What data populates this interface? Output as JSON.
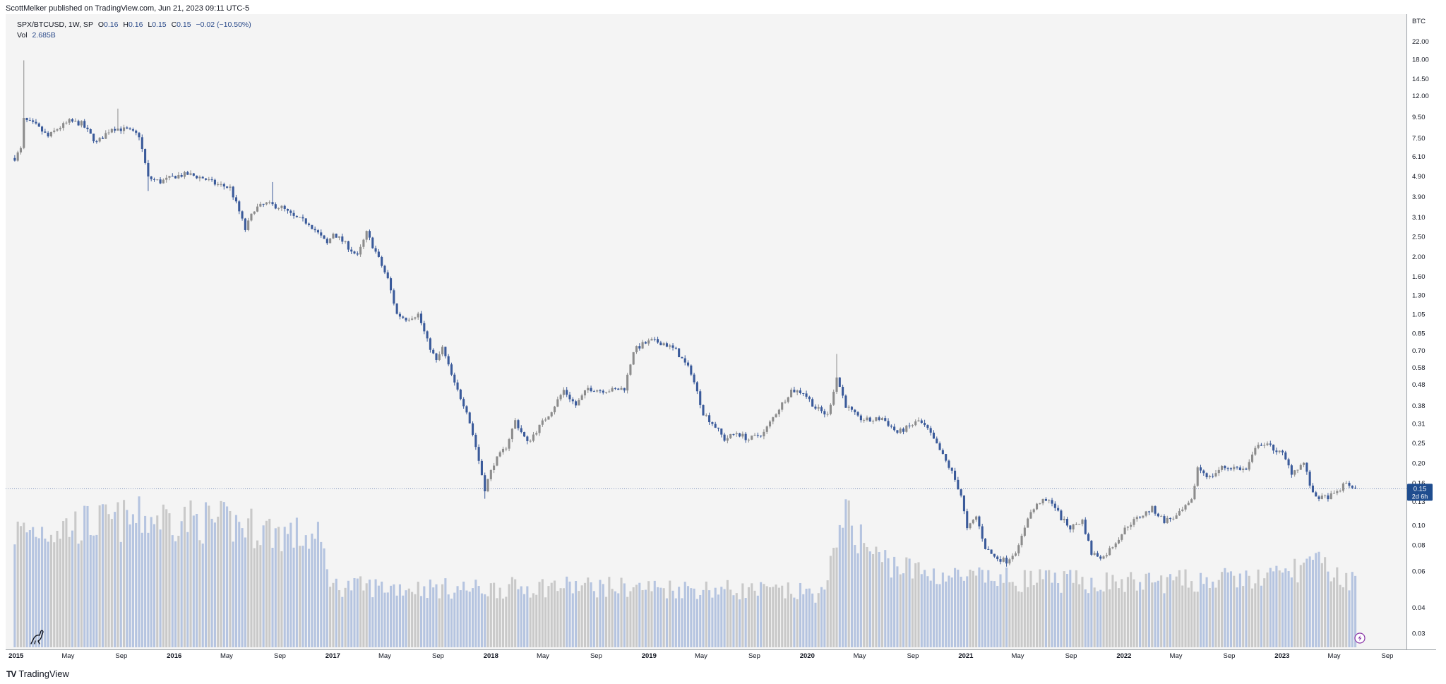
{
  "header": {
    "published_by": "ScottMelker published on TradingView.com, Jun 21, 2023 09:11 UTC-5"
  },
  "legend": {
    "symbol": "SPX/BTCUSD, 1W, SP",
    "open_label": "O",
    "open": "0.16",
    "high_label": "H",
    "high": "0.16",
    "low_label": "L",
    "low": "0.15",
    "close_label": "C",
    "close": "0.15",
    "change": "−0.02 (−10.50%)",
    "vol_label": "Vol",
    "vol_value": "2.685B"
  },
  "price_tag": {
    "value": "0.15",
    "countdown": "2d 6h"
  },
  "footer": {
    "brand": "TradingView"
  },
  "colors": {
    "background": "#f4f4f4",
    "up_candle": "#8c8c8c",
    "down_candle": "#3a5a9a",
    "up_volume": "#c9c9c9",
    "down_volume": "#b5c4e0",
    "tag": "#1f4d8f",
    "lightning_icon": "#8a35a8"
  },
  "chart_data": {
    "type": "candlestick",
    "title": "SPX/BTCUSD, 1W, SP",
    "yunit": "BTC",
    "scale": "log",
    "ylim": [
      0.026,
      28
    ],
    "y_ticks": [
      22.0,
      18.0,
      14.5,
      12.0,
      9.5,
      7.5,
      6.1,
      4.9,
      3.9,
      3.1,
      2.5,
      2.0,
      1.6,
      1.3,
      1.05,
      0.85,
      0.7,
      0.58,
      0.48,
      0.38,
      0.31,
      0.25,
      0.2,
      0.16,
      0.13,
      0.1,
      0.08,
      0.06,
      0.04,
      0.03
    ],
    "y_tick_labels": [
      "22.00",
      "18.00",
      "14.50",
      "12.00",
      "9.50",
      "7.50",
      "6.10",
      "4.90",
      "3.90",
      "3.10",
      "2.50",
      "2.00",
      "1.60",
      "1.30",
      "1.05",
      "0.85",
      "0.70",
      "0.58",
      "0.48",
      "0.38",
      "0.31",
      "0.25",
      "0.20",
      "0.16",
      "0.13",
      "0.10",
      "0.08",
      "0.06",
      "0.04",
      "0.03"
    ],
    "x_axis": {
      "start": "2014-12-08",
      "end": "2023-10-15",
      "ticks": [
        {
          "date": "2015-01-01",
          "label": "2015",
          "bold": true
        },
        {
          "date": "2015-05-01",
          "label": "May",
          "bold": false
        },
        {
          "date": "2015-09-01",
          "label": "Sep",
          "bold": false
        },
        {
          "date": "2016-01-01",
          "label": "2016",
          "bold": true
        },
        {
          "date": "2016-05-01",
          "label": "May",
          "bold": false
        },
        {
          "date": "2016-09-01",
          "label": "Sep",
          "bold": false
        },
        {
          "date": "2017-01-01",
          "label": "2017",
          "bold": true
        },
        {
          "date": "2017-05-01",
          "label": "May",
          "bold": false
        },
        {
          "date": "2017-09-01",
          "label": "Sep",
          "bold": false
        },
        {
          "date": "2018-01-01",
          "label": "2018",
          "bold": true
        },
        {
          "date": "2018-05-01",
          "label": "May",
          "bold": false
        },
        {
          "date": "2018-09-01",
          "label": "Sep",
          "bold": false
        },
        {
          "date": "2019-01-01",
          "label": "2019",
          "bold": true
        },
        {
          "date": "2019-05-01",
          "label": "May",
          "bold": false
        },
        {
          "date": "2019-09-01",
          "label": "Sep",
          "bold": false
        },
        {
          "date": "2020-01-01",
          "label": "2020",
          "bold": true
        },
        {
          "date": "2020-05-01",
          "label": "May",
          "bold": false
        },
        {
          "date": "2020-09-01",
          "label": "Sep",
          "bold": false
        },
        {
          "date": "2021-01-01",
          "label": "2021",
          "bold": true
        },
        {
          "date": "2021-05-01",
          "label": "May",
          "bold": false
        },
        {
          "date": "2021-09-01",
          "label": "Sep",
          "bold": false
        },
        {
          "date": "2022-01-01",
          "label": "2022",
          "bold": true
        },
        {
          "date": "2022-05-01",
          "label": "May",
          "bold": false
        },
        {
          "date": "2022-09-01",
          "label": "Sep",
          "bold": false
        },
        {
          "date": "2023-01-01",
          "label": "2023",
          "bold": true
        },
        {
          "date": "2023-05-01",
          "label": "May",
          "bold": false
        },
        {
          "date": "2023-09-01",
          "label": "Sep",
          "bold": false
        }
      ]
    },
    "last_price": 0.15,
    "close_path": [
      {
        "date": "2014-12-29",
        "close": 6.0
      },
      {
        "date": "2015-01-12",
        "close": 6.6
      },
      {
        "date": "2015-01-19",
        "close": 9.2
      },
      {
        "date": "2015-02-16",
        "close": 8.6
      },
      {
        "date": "2015-03-16",
        "close": 7.6
      },
      {
        "date": "2015-04-06",
        "close": 8.3
      },
      {
        "date": "2015-05-04",
        "close": 9.0
      },
      {
        "date": "2015-06-01",
        "close": 8.8
      },
      {
        "date": "2015-07-06",
        "close": 7.1
      },
      {
        "date": "2015-08-10",
        "close": 8.4
      },
      {
        "date": "2015-09-14",
        "close": 8.2
      },
      {
        "date": "2015-10-12",
        "close": 7.7
      },
      {
        "date": "2015-11-02",
        "close": 4.8
      },
      {
        "date": "2015-11-30",
        "close": 4.6
      },
      {
        "date": "2016-01-04",
        "close": 4.9
      },
      {
        "date": "2016-02-01",
        "close": 5.0
      },
      {
        "date": "2016-03-07",
        "close": 4.8
      },
      {
        "date": "2016-04-04",
        "close": 4.5
      },
      {
        "date": "2016-05-09",
        "close": 4.3
      },
      {
        "date": "2016-05-30",
        "close": 3.3
      },
      {
        "date": "2016-06-13",
        "close": 2.7
      },
      {
        "date": "2016-07-04",
        "close": 3.4
      },
      {
        "date": "2016-08-01",
        "close": 3.6
      },
      {
        "date": "2016-09-05",
        "close": 3.45
      },
      {
        "date": "2016-10-03",
        "close": 3.1
      },
      {
        "date": "2016-11-07",
        "close": 2.9
      },
      {
        "date": "2016-12-19",
        "close": 2.3
      },
      {
        "date": "2017-01-02",
        "close": 2.6
      },
      {
        "date": "2017-01-30",
        "close": 2.3
      },
      {
        "date": "2017-02-27",
        "close": 2.0
      },
      {
        "date": "2017-03-20",
        "close": 2.6
      },
      {
        "date": "2017-04-10",
        "close": 2.1
      },
      {
        "date": "2017-05-08",
        "close": 1.55
      },
      {
        "date": "2017-05-29",
        "close": 1.05
      },
      {
        "date": "2017-06-19",
        "close": 1.0
      },
      {
        "date": "2017-07-17",
        "close": 1.05
      },
      {
        "date": "2017-08-07",
        "close": 0.78
      },
      {
        "date": "2017-08-28",
        "close": 0.62
      },
      {
        "date": "2017-09-11",
        "close": 0.72
      },
      {
        "date": "2017-10-09",
        "close": 0.48
      },
      {
        "date": "2017-11-06",
        "close": 0.36
      },
      {
        "date": "2017-11-27",
        "close": 0.24
      },
      {
        "date": "2017-12-18",
        "close": 0.15
      },
      {
        "date": "2018-01-08",
        "close": 0.2
      },
      {
        "date": "2018-02-05",
        "close": 0.24
      },
      {
        "date": "2018-02-26",
        "close": 0.32
      },
      {
        "date": "2018-03-26",
        "close": 0.25
      },
      {
        "date": "2018-04-23",
        "close": 0.3
      },
      {
        "date": "2018-05-21",
        "close": 0.36
      },
      {
        "date": "2018-06-18",
        "close": 0.45
      },
      {
        "date": "2018-07-16",
        "close": 0.38
      },
      {
        "date": "2018-08-13",
        "close": 0.46
      },
      {
        "date": "2018-09-10",
        "close": 0.45
      },
      {
        "date": "2018-10-08",
        "close": 0.45
      },
      {
        "date": "2018-11-05",
        "close": 0.46
      },
      {
        "date": "2018-11-26",
        "close": 0.7
      },
      {
        "date": "2018-12-17",
        "close": 0.75
      },
      {
        "date": "2019-01-07",
        "close": 0.78
      },
      {
        "date": "2019-02-04",
        "close": 0.76
      },
      {
        "date": "2019-03-04",
        "close": 0.7
      },
      {
        "date": "2019-04-08",
        "close": 0.55
      },
      {
        "date": "2019-05-06",
        "close": 0.35
      },
      {
        "date": "2019-06-03",
        "close": 0.3
      },
      {
        "date": "2019-06-24",
        "close": 0.26
      },
      {
        "date": "2019-07-22",
        "close": 0.28
      },
      {
        "date": "2019-08-19",
        "close": 0.26
      },
      {
        "date": "2019-09-23",
        "close": 0.28
      },
      {
        "date": "2019-10-21",
        "close": 0.35
      },
      {
        "date": "2019-11-25",
        "close": 0.45
      },
      {
        "date": "2019-12-23",
        "close": 0.44
      },
      {
        "date": "2020-01-20",
        "close": 0.37
      },
      {
        "date": "2020-02-17",
        "close": 0.34
      },
      {
        "date": "2020-03-09",
        "close": 0.52
      },
      {
        "date": "2020-03-30",
        "close": 0.38
      },
      {
        "date": "2020-04-27",
        "close": 0.33
      },
      {
        "date": "2020-05-25",
        "close": 0.32
      },
      {
        "date": "2020-06-22",
        "close": 0.33
      },
      {
        "date": "2020-07-27",
        "close": 0.28
      },
      {
        "date": "2020-08-24",
        "close": 0.3
      },
      {
        "date": "2020-09-14",
        "close": 0.32
      },
      {
        "date": "2020-10-05",
        "close": 0.29
      },
      {
        "date": "2020-11-02",
        "close": 0.23
      },
      {
        "date": "2020-11-30",
        "close": 0.18
      },
      {
        "date": "2020-12-21",
        "close": 0.14
      },
      {
        "date": "2021-01-04",
        "close": 0.095
      },
      {
        "date": "2021-01-25",
        "close": 0.11
      },
      {
        "date": "2021-02-15",
        "close": 0.078
      },
      {
        "date": "2021-03-08",
        "close": 0.07
      },
      {
        "date": "2021-04-05",
        "close": 0.067
      },
      {
        "date": "2021-05-03",
        "close": 0.078
      },
      {
        "date": "2021-05-24",
        "close": 0.11
      },
      {
        "date": "2021-06-21",
        "close": 0.13
      },
      {
        "date": "2021-07-19",
        "close": 0.13
      },
      {
        "date": "2021-08-09",
        "close": 0.108
      },
      {
        "date": "2021-08-30",
        "close": 0.097
      },
      {
        "date": "2021-09-27",
        "close": 0.105
      },
      {
        "date": "2021-10-18",
        "close": 0.073
      },
      {
        "date": "2021-11-15",
        "close": 0.07
      },
      {
        "date": "2021-12-13",
        "close": 0.083
      },
      {
        "date": "2022-01-10",
        "close": 0.1
      },
      {
        "date": "2022-02-07",
        "close": 0.11
      },
      {
        "date": "2022-03-07",
        "close": 0.12
      },
      {
        "date": "2022-04-04",
        "close": 0.105
      },
      {
        "date": "2022-05-02",
        "close": 0.11
      },
      {
        "date": "2022-06-06",
        "close": 0.13
      },
      {
        "date": "2022-06-20",
        "close": 0.19
      },
      {
        "date": "2022-07-18",
        "close": 0.17
      },
      {
        "date": "2022-08-15",
        "close": 0.19
      },
      {
        "date": "2022-09-12",
        "close": 0.19
      },
      {
        "date": "2022-10-10",
        "close": 0.185
      },
      {
        "date": "2022-11-07",
        "close": 0.25
      },
      {
        "date": "2022-12-05",
        "close": 0.24
      },
      {
        "date": "2023-01-02",
        "close": 0.22
      },
      {
        "date": "2023-01-23",
        "close": 0.18
      },
      {
        "date": "2023-02-20",
        "close": 0.2
      },
      {
        "date": "2023-03-13",
        "close": 0.14
      },
      {
        "date": "2023-04-03",
        "close": 0.135
      },
      {
        "date": "2023-05-01",
        "close": 0.14
      },
      {
        "date": "2023-05-29",
        "close": 0.16
      },
      {
        "date": "2023-06-19",
        "close": 0.15
      }
    ],
    "volume_scale": "relative (0-1 of pane height)",
    "volume_path": [
      {
        "date": "2014-12-29",
        "rel": 0.75
      },
      {
        "date": "2015-06-01",
        "rel": 0.8
      },
      {
        "date": "2015-12-01",
        "rel": 0.85
      },
      {
        "date": "2016-06-01",
        "rel": 0.8
      },
      {
        "date": "2016-12-01",
        "rel": 0.7
      },
      {
        "date": "2017-01-02",
        "rel": 0.4
      },
      {
        "date": "2017-12-01",
        "rel": 0.38
      },
      {
        "date": "2018-06-01",
        "rel": 0.4
      },
      {
        "date": "2019-06-01",
        "rel": 0.38
      },
      {
        "date": "2020-02-15",
        "rel": 0.35
      },
      {
        "date": "2020-03-16",
        "rel": 0.9
      },
      {
        "date": "2020-06-01",
        "rel": 0.6
      },
      {
        "date": "2020-09-01",
        "rel": 0.5
      },
      {
        "date": "2021-01-01",
        "rel": 0.45
      },
      {
        "date": "2022-01-01",
        "rel": 0.42
      },
      {
        "date": "2022-12-01",
        "rel": 0.45
      },
      {
        "date": "2023-03-13",
        "rel": 0.55
      },
      {
        "date": "2023-06-19",
        "rel": 0.42
      }
    ]
  }
}
